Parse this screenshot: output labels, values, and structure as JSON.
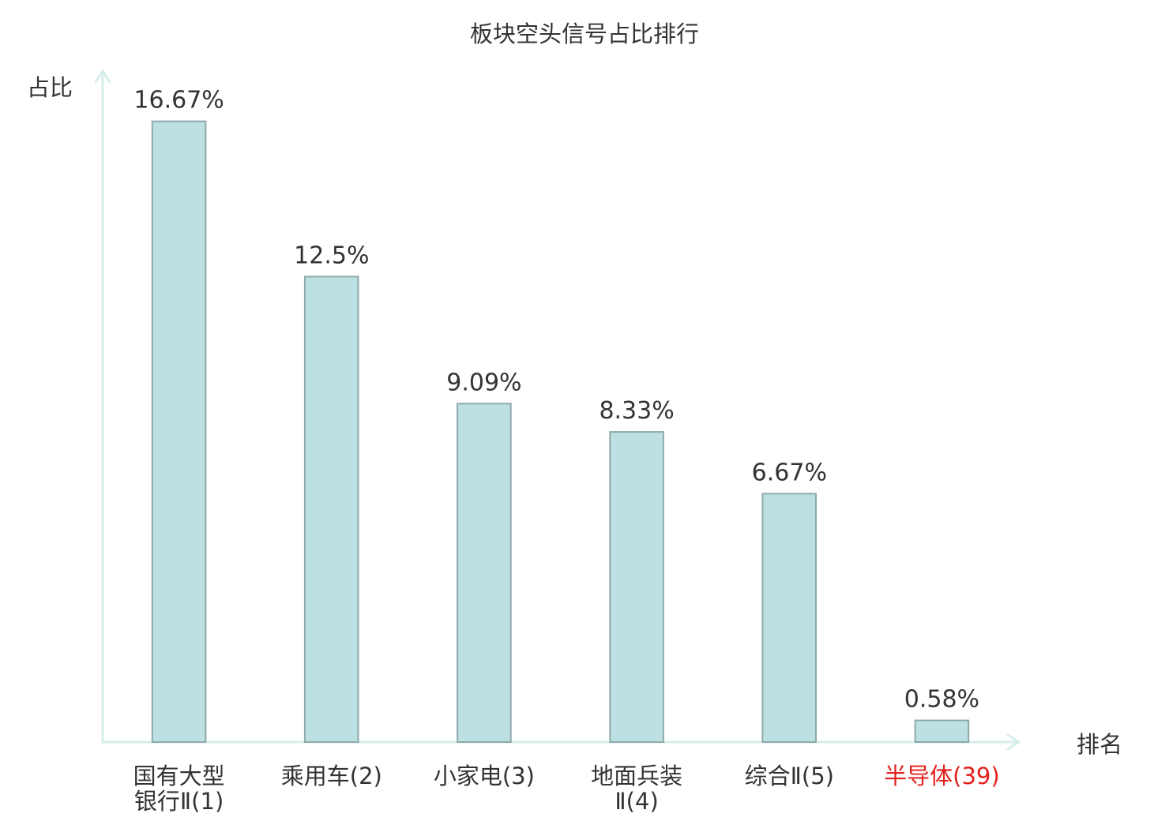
{
  "chart_data": {
    "type": "bar",
    "title": "板块空头信号占比排行",
    "xlabel": "排名",
    "ylabel": "占比",
    "categories": [
      "国有大型银行Ⅱ(1)",
      "乘用车(2)",
      "小家电(3)",
      "地面兵装Ⅱ(4)",
      "综合Ⅱ(5)",
      "半导体(39)"
    ],
    "values": [
      16.67,
      12.5,
      9.09,
      8.33,
      6.67,
      0.58
    ],
    "data_labels": [
      "16.67%",
      "12.5%",
      "9.09%",
      "8.33%",
      "6.67%",
      "0.58%"
    ],
    "ylim": [
      0,
      18
    ],
    "grid": false,
    "legend": "none",
    "colors": {
      "bar_fill": "#bde0e3",
      "bar_stroke": "#8fa9aa",
      "axis": "#d6eeea",
      "text": "#333333"
    },
    "category_label_colors": [
      "#333333",
      "#333333",
      "#333333",
      "#333333",
      "#333333",
      "#e3211c"
    ]
  }
}
